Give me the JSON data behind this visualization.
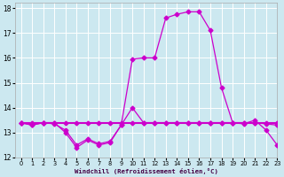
{
  "xlabel": "Windchill (Refroidissement éolien,°C)",
  "xlim": [
    -0.5,
    23
  ],
  "ylim": [
    12,
    18.2
  ],
  "yticks": [
    12,
    13,
    14,
    15,
    16,
    17,
    18
  ],
  "xticks": [
    0,
    1,
    2,
    3,
    4,
    5,
    6,
    7,
    8,
    9,
    10,
    11,
    12,
    13,
    14,
    15,
    16,
    17,
    18,
    19,
    20,
    21,
    22,
    23
  ],
  "bg_color": "#cce8f0",
  "grid_color": "#ffffff",
  "line_color": "#cc00cc",
  "series1": [
    13.4,
    13.3,
    13.4,
    13.4,
    13.0,
    12.4,
    12.7,
    12.5,
    12.6,
    13.3,
    15.95,
    16.0,
    16.0,
    17.6,
    17.75,
    17.85,
    17.85,
    17.1,
    14.8,
    13.4,
    13.35,
    13.5,
    13.1,
    12.5
  ],
  "series2": [
    13.4,
    13.3,
    13.4,
    13.35,
    13.1,
    12.5,
    12.75,
    12.55,
    12.65,
    13.3,
    14.0,
    13.4,
    13.4,
    13.4,
    13.4,
    13.4,
    13.4,
    13.4,
    13.4,
    13.4,
    13.4,
    13.4,
    13.35,
    13.3
  ],
  "series3": [
    13.4,
    13.4,
    13.4,
    13.4,
    13.4,
    13.4,
    13.4,
    13.4,
    13.4,
    13.4,
    13.4,
    13.4,
    13.4,
    13.4,
    13.4,
    13.4,
    13.4,
    13.4,
    13.4,
    13.4,
    13.4,
    13.4,
    13.4,
    13.4
  ]
}
